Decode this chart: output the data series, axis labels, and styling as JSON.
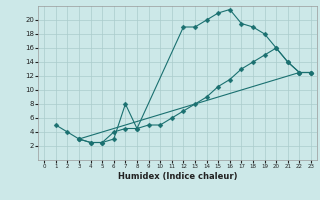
{
  "title": "",
  "xlabel": "Humidex (Indice chaleur)",
  "background_color": "#cce8e8",
  "grid_color": "#aacccc",
  "line_color": "#1a7070",
  "xlim": [
    -0.5,
    23.5
  ],
  "ylim": [
    0,
    22
  ],
  "xticks": [
    0,
    1,
    2,
    3,
    4,
    5,
    6,
    7,
    8,
    9,
    10,
    11,
    12,
    13,
    14,
    15,
    16,
    17,
    18,
    19,
    20,
    21,
    22,
    23
  ],
  "yticks": [
    2,
    4,
    6,
    8,
    10,
    12,
    14,
    16,
    18,
    20
  ],
  "line1_x": [
    1,
    2,
    3,
    4,
    5,
    6,
    7,
    8,
    12,
    13,
    14,
    15,
    16,
    17,
    18,
    19,
    20,
    21,
    22,
    23
  ],
  "line1_y": [
    5,
    4,
    3,
    2.5,
    2.5,
    3,
    8,
    4.5,
    19,
    19,
    20,
    21,
    21.5,
    19.5,
    19,
    18,
    16,
    14,
    12.5,
    12.5
  ],
  "line2_x": [
    3,
    4,
    5,
    6,
    7,
    8,
    9,
    10,
    11,
    12,
    13,
    14,
    15,
    16,
    17,
    18,
    19,
    20,
    21,
    22,
    23
  ],
  "line2_y": [
    3,
    2.5,
    2.5,
    4,
    4.5,
    4.5,
    5,
    5,
    6,
    7,
    8,
    9,
    10.5,
    11.5,
    13,
    14,
    15,
    16,
    14,
    12.5,
    12.5
  ],
  "line3_x": [
    3,
    22,
    23
  ],
  "line3_y": [
    3,
    12.5,
    12.5
  ]
}
